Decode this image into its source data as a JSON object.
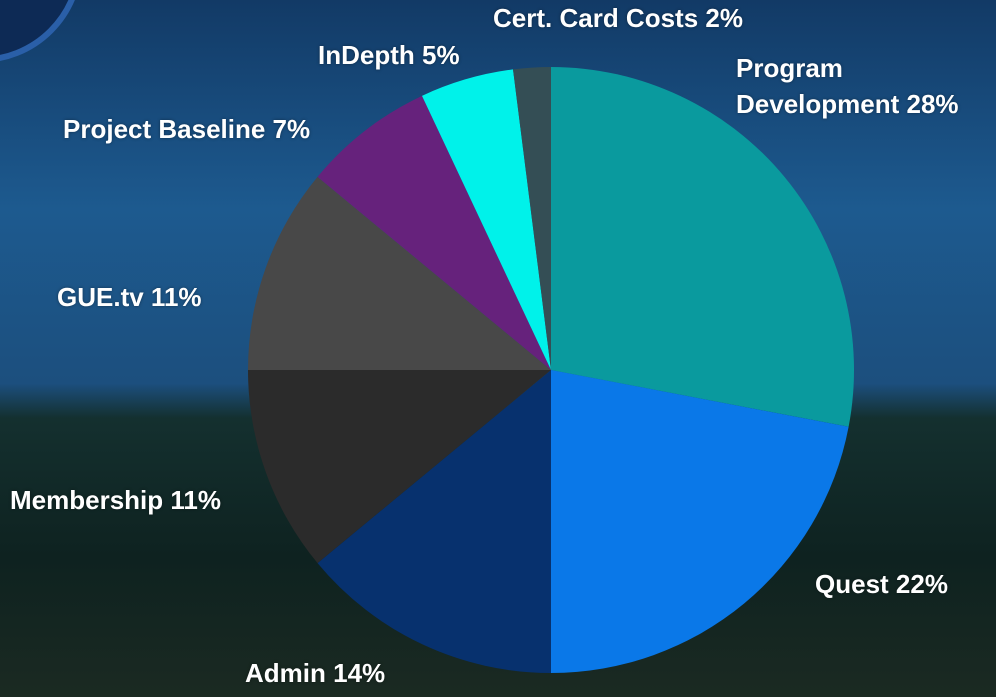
{
  "chart_data": {
    "type": "pie",
    "categories": [
      "Program Development",
      "Quest",
      "Admin",
      "Membership",
      "GUE.tv",
      "Project Baseline",
      "InDepth ",
      "Cert. Card Costs"
    ],
    "values": [
      28,
      22,
      14,
      11,
      11,
      7,
      5,
      2
    ],
    "value_labels": [
      "28%",
      "22%",
      "14%",
      "11%",
      "11%",
      "7%",
      "5%",
      "2%"
    ],
    "colors": [
      "#0a9a9e",
      "#0a78e8",
      "#07316e",
      "#2b2b2b",
      "#484848",
      "#66227c",
      "#00f2ea",
      "#344e55"
    ]
  }
}
